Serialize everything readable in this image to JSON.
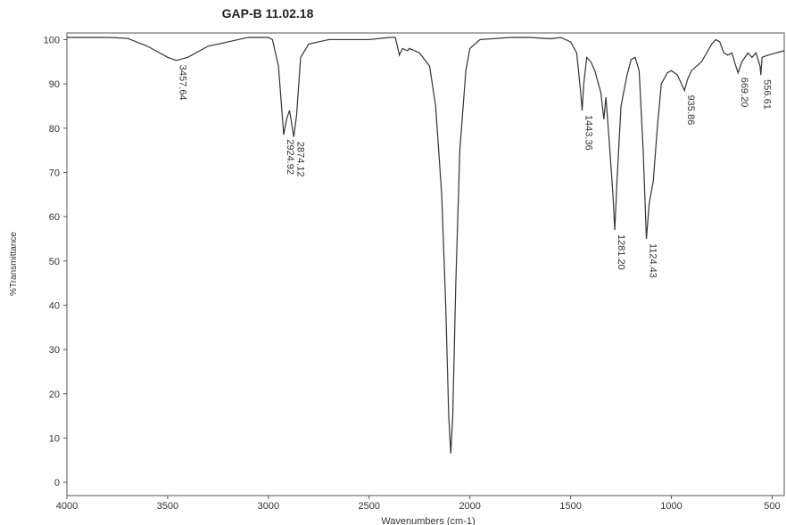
{
  "chart_data": {
    "type": "line",
    "title": "GAP-B 11.02.18",
    "x_label": "Wavenumbers (cm-1)",
    "y_label": "%Transmittance",
    "xlim": [
      4000,
      440
    ],
    "ylim": [
      -3,
      101.5
    ],
    "xticks": [
      4000,
      3500,
      3000,
      2500,
      2000,
      1500,
      1000,
      500
    ],
    "yticks": [
      0,
      10,
      20,
      30,
      40,
      50,
      60,
      70,
      80,
      90,
      100
    ],
    "grid": false,
    "series": [
      {
        "name": "GAP-B 11.02.18",
        "color": "#333333",
        "x": [
          4000,
          3900,
          3800,
          3700,
          3600,
          3500,
          3457,
          3400,
          3300,
          3200,
          3100,
          3000,
          2980,
          2950,
          2924,
          2910,
          2895,
          2874,
          2860,
          2840,
          2800,
          2700,
          2600,
          2500,
          2400,
          2370,
          2350,
          2335,
          2310,
          2300,
          2250,
          2200,
          2170,
          2140,
          2120,
          2105,
          2095,
          2085,
          2070,
          2050,
          2020,
          2000,
          1950,
          1800,
          1700,
          1600,
          1550,
          1500,
          1470,
          1450,
          1443,
          1435,
          1420,
          1400,
          1380,
          1350,
          1335,
          1325,
          1310,
          1290,
          1281,
          1270,
          1250,
          1220,
          1200,
          1180,
          1160,
          1140,
          1124,
          1110,
          1090,
          1070,
          1050,
          1020,
          1000,
          970,
          950,
          935,
          920,
          900,
          850,
          800,
          780,
          760,
          740,
          720,
          700,
          680,
          669,
          650,
          620,
          600,
          580,
          560,
          556,
          550,
          520,
          480,
          440
        ],
        "values": [
          100.5,
          100.5,
          100.5,
          100.3,
          98.5,
          96,
          95.3,
          96,
          98.5,
          99.5,
          100.5,
          100.5,
          100,
          94,
          78.5,
          82,
          84,
          78,
          83,
          96,
          99,
          100,
          100,
          100,
          100.5,
          100.5,
          96.5,
          98,
          97.5,
          98,
          97,
          94,
          85,
          65,
          40,
          15,
          6.5,
          15,
          45,
          75,
          93,
          98,
          100,
          100.5,
          100.5,
          100.2,
          100.5,
          99.5,
          97,
          88,
          84,
          90,
          96,
          95,
          93,
          88,
          82,
          87,
          78,
          65,
          57,
          68,
          85,
          92,
          95.5,
          96,
          93,
          75,
          55,
          63,
          68,
          80,
          90,
          92.5,
          93,
          92,
          90,
          88.5,
          91,
          93,
          95,
          99,
          100,
          99.5,
          97,
          96.5,
          97,
          94,
          92.5,
          95,
          97,
          96,
          97,
          94,
          92,
          96,
          96.5,
          97,
          97.5
        ]
      }
    ],
    "annotations": [
      {
        "text": "3457.64",
        "x": 3457.64,
        "y": 95.3
      },
      {
        "text": "2924.92",
        "x": 2924.92,
        "y": 78.5
      },
      {
        "text": "2874.12",
        "x": 2874.12,
        "y": 78
      },
      {
        "text": "1443.36",
        "x": 1443.36,
        "y": 84
      },
      {
        "text": "1281.20",
        "x": 1281.2,
        "y": 57
      },
      {
        "text": "1124.43",
        "x": 1124.43,
        "y": 55
      },
      {
        "text": "935.86",
        "x": 935.86,
        "y": 88.5
      },
      {
        "text": "669.20",
        "x": 669.2,
        "y": 92.5
      },
      {
        "text": "556.61",
        "x": 556.61,
        "y": 92
      }
    ]
  }
}
